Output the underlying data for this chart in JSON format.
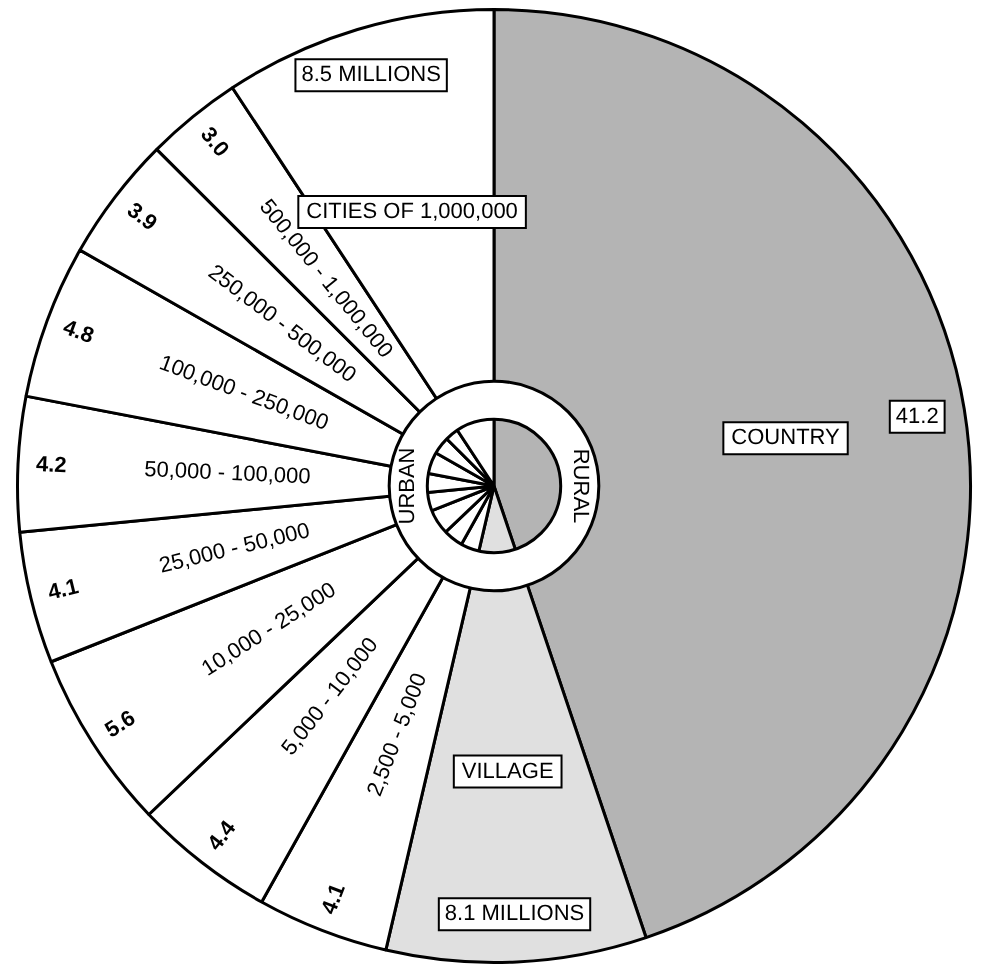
{
  "chart_data": {
    "type": "pie",
    "categories": [
      "COUNTRY",
      "VILLAGE",
      "2,500 - 5,000",
      "5,000 - 10,000",
      "10,000 - 25,000",
      "25,000 - 50,000",
      "50,000 - 100,000",
      "100,000 - 250,000",
      "250,000 - 500,000",
      "500,000 - 1,000,000",
      "CITIES OF 1,000,000"
    ],
    "values": [
      41.2,
      8.1,
      4.1,
      4.4,
      5.6,
      4.1,
      4.2,
      4.8,
      3.9,
      3.0,
      8.5
    ],
    "value_labels": [
      "41.2",
      "8.1 MILLIONS",
      "4.1",
      "4.4",
      "5.6",
      "4.1",
      "4.2",
      "4.8",
      "3.9",
      "3.0",
      "8.5 MILLIONS"
    ],
    "colors": [
      "#b4b4b4",
      "#e0e0e0",
      "#ffffff",
      "#ffffff",
      "#ffffff",
      "#ffffff",
      "#ffffff",
      "#ffffff",
      "#ffffff",
      "#ffffff",
      "#ffffff"
    ],
    "annotations": [
      "URBAN",
      "RURAL"
    ],
    "legend": false
  }
}
